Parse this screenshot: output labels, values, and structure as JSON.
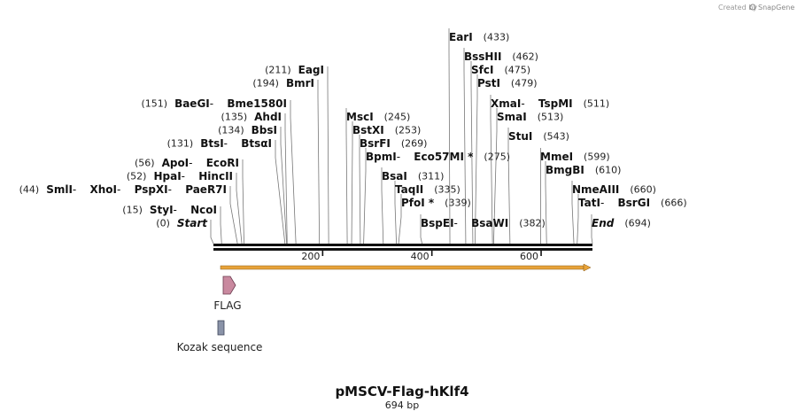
{
  "credit": {
    "prefix": "Created by",
    "brand": "SnapGene"
  },
  "plasmid": {
    "name": "pMSCV-Flag-hKlf4",
    "length_label": "694 bp",
    "length": 694
  },
  "scale": {
    "ticks": [
      200,
      400,
      600
    ]
  },
  "features": [
    {
      "name": "FLAG",
      "color": "#c9899f",
      "shape": "arrow"
    },
    {
      "name": "Kozak sequence",
      "color": "#8a93a8",
      "shape": "box"
    }
  ],
  "orf": {
    "color": "#e8a33a"
  },
  "sites": [
    {
      "id": "earI",
      "pos": 433,
      "parts": [
        "EarI"
      ],
      "poslabel": "(433)"
    },
    {
      "id": "bsshii",
      "pos": 462,
      "parts": [
        "BssHII"
      ],
      "poslabel": "(462)"
    },
    {
      "id": "sfci",
      "pos": 475,
      "parts": [
        "SfcI"
      ],
      "poslabel": "(475)"
    },
    {
      "id": "psti",
      "pos": 479,
      "parts": [
        "PstI"
      ],
      "poslabel": "(479)"
    },
    {
      "id": "xmai",
      "pos": 511,
      "parts": [
        "XmaI",
        "TspMI"
      ],
      "poslabel": "(511)"
    },
    {
      "id": "smai",
      "pos": 513,
      "parts": [
        "SmaI"
      ],
      "poslabel": "(513)"
    },
    {
      "id": "stui",
      "pos": 543,
      "parts": [
        "StuI"
      ],
      "poslabel": "(543)"
    },
    {
      "id": "mmei",
      "pos": 599,
      "parts": [
        "MmeI"
      ],
      "poslabel": "(599)"
    },
    {
      "id": "bmgbi",
      "pos": 610,
      "parts": [
        "BmgBI"
      ],
      "poslabel": "(610)"
    },
    {
      "id": "nmeaiii",
      "pos": 660,
      "parts": [
        "NmeAIII"
      ],
      "poslabel": "(660)"
    },
    {
      "id": "tati",
      "pos": 666,
      "parts": [
        "TatI",
        "BsrGI"
      ],
      "poslabel": "(666)"
    },
    {
      "id": "end",
      "pos": 694,
      "parts": [
        "End"
      ],
      "poslabel": "(694)"
    },
    {
      "id": "msci",
      "pos": 245,
      "parts": [
        "MscI"
      ],
      "poslabel": "(245)"
    },
    {
      "id": "bstxi",
      "pos": 253,
      "parts": [
        "BstXI"
      ],
      "poslabel": "(253)"
    },
    {
      "id": "bsrfi",
      "pos": 269,
      "parts": [
        "BsrFI"
      ],
      "poslabel": "(269)"
    },
    {
      "id": "bpmi",
      "pos": 275,
      "parts": [
        "BpmI",
        "Eco57MI *"
      ],
      "poslabel": "(275)"
    },
    {
      "id": "bsai",
      "pos": 311,
      "parts": [
        "BsaI"
      ],
      "poslabel": "(311)"
    },
    {
      "id": "taqii",
      "pos": 335,
      "parts": [
        "TaqII"
      ],
      "poslabel": "(335)"
    },
    {
      "id": "pfoi",
      "pos": 339,
      "parts": [
        "PfoI *"
      ],
      "poslabel": "(339)"
    },
    {
      "id": "bspei",
      "pos": 382,
      "parts": [
        "BspEI",
        "BsaWI"
      ],
      "poslabel": "(382)"
    },
    {
      "id": "eagi",
      "pos": 211,
      "parts": [
        "EagI"
      ],
      "poslabel": "(211)"
    },
    {
      "id": "bmri",
      "pos": 194,
      "parts": [
        "BmrI"
      ],
      "poslabel": "(194)"
    },
    {
      "id": "baegi",
      "pos": 151,
      "parts": [
        "BaeGI",
        "Bme1580I"
      ],
      "poslabel": "(151)"
    },
    {
      "id": "ahdi",
      "pos": 135,
      "parts": [
        "AhdI"
      ],
      "poslabel": "(135)"
    },
    {
      "id": "bbsi",
      "pos": 134,
      "parts": [
        "BbsI"
      ],
      "poslabel": "(134)"
    },
    {
      "id": "btsi",
      "pos": 131,
      "parts": [
        "BtsI",
        "BtsαI"
      ],
      "poslabel": "(131)"
    },
    {
      "id": "apoi",
      "pos": 56,
      "parts": [
        "ApoI",
        "EcoRI"
      ],
      "poslabel": "(56)"
    },
    {
      "id": "hpai",
      "pos": 52,
      "parts": [
        "HpaI",
        "HincII"
      ],
      "poslabel": "(52)"
    },
    {
      "id": "smli",
      "pos": 44,
      "parts": [
        "SmlI",
        "XhoI",
        "PspXI",
        "PaeR7I"
      ],
      "poslabel": "(44)"
    },
    {
      "id": "styi",
      "pos": 15,
      "parts": [
        "StyI",
        "NcoI"
      ],
      "poslabel": "(15)"
    },
    {
      "id": "start",
      "pos": 0,
      "parts": [
        "Start"
      ],
      "poslabel": "(0)"
    }
  ]
}
